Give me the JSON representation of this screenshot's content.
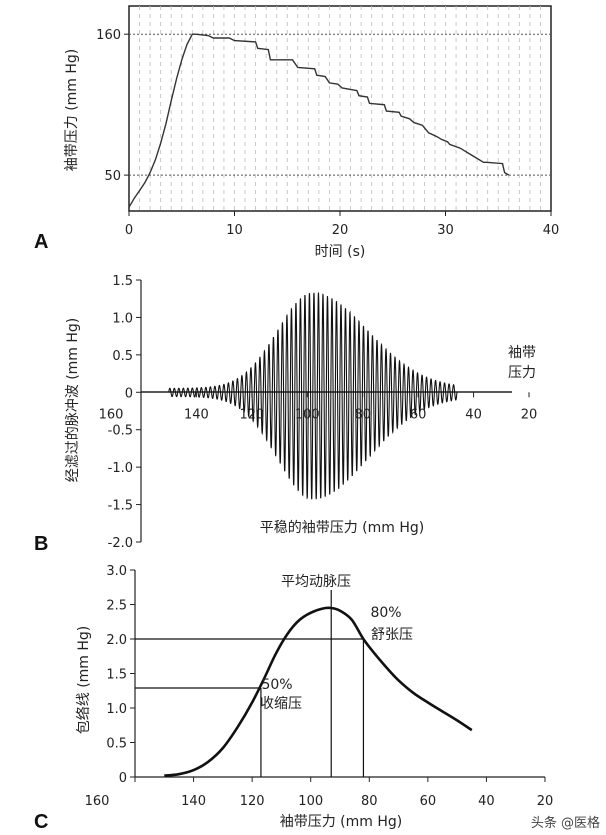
{
  "chart_data": [
    {
      "id": "A",
      "type": "line",
      "panel_label": "A",
      "xlabel": "时间 (s)",
      "ylabel": "袖带压力 (mm Hg)",
      "xlim": [
        0,
        40
      ],
      "ylim": [
        22,
        182
      ],
      "x_ticks": [
        0,
        10,
        20,
        30,
        40
      ],
      "x_tick_labels": [
        "0",
        "10",
        "20",
        "30",
        "40"
      ],
      "y_ticks": [
        50,
        160
      ],
      "y_tick_labels": [
        "50",
        "160"
      ],
      "grid": "vertical dashed + horizontal dotted at 50 and 160",
      "series": [
        {
          "name": "袖带压力",
          "x": [
            0,
            0.5,
            1,
            1.5,
            2,
            2.5,
            3,
            3.5,
            4,
            4.5,
            5,
            5.5,
            6,
            6.3,
            7.5,
            8,
            9.5,
            10,
            12,
            12.2,
            13.2,
            13.4,
            15.5,
            16,
            17.6,
            17.8,
            18.6,
            19,
            19.8,
            20.2,
            21.6,
            21.8,
            22.6,
            22.8,
            24.2,
            24.4,
            25.6,
            25.8,
            26.6,
            27,
            27.8,
            28.2,
            28.4,
            29.2,
            29.6,
            30.2,
            30.4,
            31.4,
            31.8,
            32.4,
            32.6,
            33.6,
            33.9,
            35.4,
            35.6,
            36
          ],
          "values": [
            25,
            32,
            38,
            44,
            52,
            62,
            75,
            90,
            108,
            125,
            140,
            152,
            160,
            160,
            159,
            157,
            157,
            155,
            154,
            149,
            148,
            140,
            140,
            134,
            133,
            128,
            127,
            122,
            121,
            118,
            116,
            112,
            111,
            106,
            105,
            100,
            99,
            96,
            94,
            91,
            89,
            85,
            83,
            80,
            78,
            76,
            74,
            71,
            69,
            66,
            65,
            60,
            60,
            59,
            52,
            50
          ]
        }
      ]
    },
    {
      "id": "B",
      "type": "line",
      "panel_label": "B",
      "xlabel": "平稳的袖带压力 (mm Hg)",
      "ylabel": "经滤过的脉冲波 (mm Hg)",
      "xlim": [
        160,
        20
      ],
      "ylim": [
        -2.0,
        1.5
      ],
      "x_ticks": [
        160,
        140,
        120,
        100,
        80,
        60,
        40,
        20
      ],
      "x_tick_labels": [
        "160",
        "140",
        "120",
        "100",
        "80",
        "60",
        "40",
        "20"
      ],
      "y_ticks": [
        1.5,
        1.0,
        0.5,
        0,
        -0.5,
        -1.0,
        -1.5,
        -2.0
      ],
      "y_tick_labels": [
        "1.5",
        "1.0",
        "0.5",
        "0",
        "-0.5",
        "-1.0",
        "-1.5",
        "-2.0"
      ],
      "axis_annotation": "袖带\n压力",
      "oscillation": {
        "from": 150,
        "to": 46,
        "cycles": 64,
        "peak_pressure": 98,
        "max_upper_amplitude": 1.33,
        "max_lower_amplitude": -1.43
      }
    },
    {
      "id": "C",
      "type": "line",
      "panel_label": "C",
      "xlabel": "袖带压力 (mm Hg)",
      "ylabel": "包络线 (mm Hg)",
      "xlim": [
        160,
        20
      ],
      "ylim": [
        0,
        3.0
      ],
      "x_ticks": [
        160,
        140,
        120,
        100,
        80,
        60,
        40,
        20
      ],
      "x_tick_labels": [
        "160",
        "140",
        "120",
        "100",
        "80",
        "60",
        "40",
        "20"
      ],
      "y_ticks": [
        0,
        0.5,
        1.0,
        1.5,
        2.0,
        2.5,
        3.0
      ],
      "y_tick_labels": [
        "0",
        "0.5",
        "1.0",
        "1.5",
        "2.0",
        "2.5",
        "3.0"
      ],
      "series": [
        {
          "name": "包络线",
          "x": [
            150,
            145,
            140,
            135,
            130,
            125,
            120,
            116,
            112,
            108,
            104,
            100,
            96,
            93,
            90,
            86,
            82,
            78,
            74,
            70,
            65,
            60,
            55,
            50,
            45
          ],
          "values": [
            0.02,
            0.04,
            0.1,
            0.22,
            0.42,
            0.72,
            1.08,
            1.42,
            1.78,
            2.07,
            2.27,
            2.38,
            2.44,
            2.45,
            2.41,
            2.28,
            2.0,
            1.78,
            1.58,
            1.4,
            1.22,
            1.08,
            0.95,
            0.82,
            0.68
          ]
        }
      ],
      "annotations": [
        {
          "name": "map",
          "label": "平均动脉压",
          "x": 93,
          "y": 2.45
        },
        {
          "name": "diastolic",
          "label_line1": "80%",
          "label_line2": "舒张压",
          "x": 82,
          "y": 2.0
        },
        {
          "name": "systolic",
          "label_line1": "50%",
          "label_line2": "收缩压",
          "x": 117,
          "y": 1.29
        }
      ]
    }
  ],
  "watermark": "头条 @医格"
}
